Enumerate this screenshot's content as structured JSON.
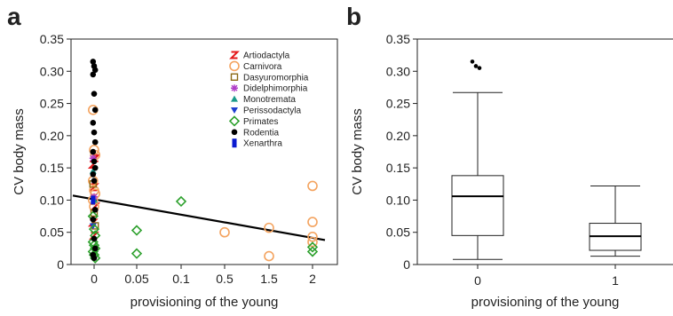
{
  "chart_data": [
    {
      "panel": "a",
      "type": "scatter",
      "xlabel": "provisioning of the young",
      "ylabel": "CV body mass",
      "ylim": [
        0,
        0.35
      ],
      "yticks": [
        "0",
        "0.05",
        "0.10",
        "0.15",
        "0.20",
        "0.25",
        "0.30",
        "0.35"
      ],
      "xtick_labels": [
        "0",
        "0.05",
        "0.1",
        "0.5",
        "1.5",
        "2"
      ],
      "legend_position": "top-right",
      "series": [
        {
          "name": "Artiodactyla",
          "color": "#e41a1c",
          "marker": "z",
          "points": [
            [
              0,
              0.155
            ],
            [
              0,
              0.12
            ],
            [
              0,
              0.09
            ],
            [
              0,
              0.065
            ],
            [
              0,
              0.045
            ],
            [
              0,
              0.165
            ]
          ]
        },
        {
          "name": "Carnivora",
          "color": "#f4a460",
          "marker": "circle-open",
          "points": [
            [
              0,
              0.24
            ],
            [
              0,
              0.178
            ],
            [
              0,
              0.17
            ],
            [
              0,
              0.13
            ],
            [
              0,
              0.115
            ],
            [
              0,
              0.11
            ],
            [
              0,
              0.1
            ],
            [
              0,
              0.09
            ],
            [
              0.5,
              0.05
            ],
            [
              1.5,
              0.057
            ],
            [
              1.5,
              0.013
            ],
            [
              2,
              0.122
            ],
            [
              2,
              0.066
            ],
            [
              2,
              0.043
            ],
            [
              2,
              0.035
            ]
          ]
        },
        {
          "name": "Dasyuromorphia",
          "color": "#8b6914",
          "marker": "square-open",
          "points": [
            [
              0,
              0.125
            ],
            [
              0,
              0.08
            ],
            [
              0,
              0.06
            ]
          ]
        },
        {
          "name": "Didelphimorphia",
          "color": "#b03fc8",
          "marker": "asterisk",
          "points": [
            [
              0,
              0.165
            ],
            [
              0,
              0.105
            ]
          ]
        },
        {
          "name": "Monotremata",
          "color": "#1a9a8a",
          "marker": "triangle-up",
          "points": [
            [
              0,
              0.145
            ],
            [
              0,
              0.1
            ]
          ]
        },
        {
          "name": "Perissodactyla",
          "color": "#1f3fd0",
          "marker": "triangle-down",
          "points": [
            [
              0,
              0.06
            ]
          ]
        },
        {
          "name": "Primates",
          "color": "#2ca02c",
          "marker": "diamond-open",
          "points": [
            [
              0,
              0.075
            ],
            [
              0,
              0.055
            ],
            [
              0,
              0.045
            ],
            [
              0,
              0.035
            ],
            [
              0,
              0.03
            ],
            [
              0,
              0.025
            ],
            [
              0,
              0.02
            ],
            [
              0,
              0.015
            ],
            [
              0,
              0.01
            ],
            [
              0.05,
              0.053
            ],
            [
              0.05,
              0.017
            ],
            [
              0.1,
              0.098
            ],
            [
              2,
              0.027
            ],
            [
              2,
              0.02
            ]
          ]
        },
        {
          "name": "Rodentia",
          "color": "#000000",
          "marker": "circle-filled",
          "points": [
            [
              0,
              0.315
            ],
            [
              0,
              0.308
            ],
            [
              0,
              0.302
            ],
            [
              0,
              0.295
            ],
            [
              0,
              0.265
            ],
            [
              0,
              0.24
            ],
            [
              0,
              0.22
            ],
            [
              0,
              0.205
            ],
            [
              0,
              0.19
            ],
            [
              0,
              0.175
            ],
            [
              0,
              0.16
            ],
            [
              0,
              0.15
            ],
            [
              0,
              0.14
            ],
            [
              0,
              0.13
            ],
            [
              0,
              0.085
            ],
            [
              0,
              0.07
            ],
            [
              0,
              0.04
            ],
            [
              0,
              0.025
            ],
            [
              0,
              0.015
            ],
            [
              0,
              0.01
            ]
          ]
        },
        {
          "name": "Xenarthra",
          "color": "#0a1ad0",
          "marker": "bar",
          "points": [
            [
              0,
              0.1
            ]
          ]
        }
      ],
      "regression": {
        "x": [
          -0.5,
          5.5
        ],
        "y": [
          0.107,
          0.038
        ]
      }
    },
    {
      "panel": "b",
      "type": "box",
      "xlabel": "provisioning of the young",
      "ylabel": "CV body mass",
      "ylim": [
        0,
        0.35
      ],
      "yticks": [
        "0",
        "0.05",
        "0.10",
        "0.15",
        "0.20",
        "0.25",
        "0.30",
        "0.35"
      ],
      "categories": [
        "0",
        "1"
      ],
      "boxes": [
        {
          "category": "0",
          "whisker_low": 0.008,
          "q1": 0.045,
          "median": 0.106,
          "q3": 0.138,
          "whisker_high": 0.267,
          "outliers": [
            0.315,
            0.308,
            0.305
          ]
        },
        {
          "category": "1",
          "whisker_low": 0.013,
          "q1": 0.022,
          "median": 0.044,
          "q3": 0.064,
          "whisker_high": 0.122,
          "outliers": []
        }
      ]
    }
  ],
  "labels": {
    "panel_a": "a",
    "panel_b": "b"
  }
}
